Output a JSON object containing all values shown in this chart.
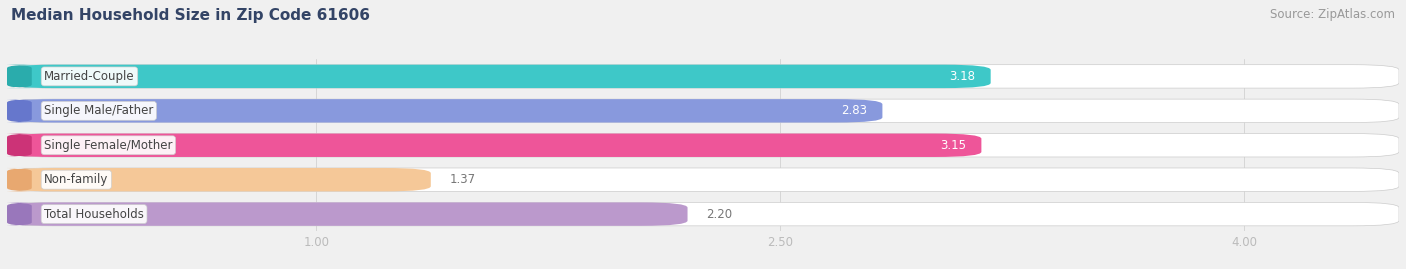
{
  "title": "Median Household Size in Zip Code 61606",
  "source": "Source: ZipAtlas.com",
  "categories": [
    "Married-Couple",
    "Single Male/Father",
    "Single Female/Mother",
    "Non-family",
    "Total Households"
  ],
  "values": [
    3.18,
    2.83,
    3.15,
    1.37,
    2.2
  ],
  "bar_colors": [
    "#3ec8c8",
    "#8899dd",
    "#ee5599",
    "#f5c898",
    "#bb99cc"
  ],
  "bar_left_colors": [
    "#2aacac",
    "#6677cc",
    "#cc3377",
    "#e8a870",
    "#9977bb"
  ],
  "value_label_colors": [
    "white",
    "white",
    "white",
    "#888888",
    "#888888"
  ],
  "xmin": 0.0,
  "xmax": 4.5,
  "xlim_display": [
    1.0,
    2.5,
    4.0
  ],
  "background_color": "#f0f0f0",
  "bar_bg_color": "#e0e0e8",
  "title_fontsize": 11,
  "title_color": "#334466",
  "source_fontsize": 8.5,
  "source_color": "#999999",
  "tick_color": "#bbbbbb",
  "bar_height": 0.68,
  "value_fontsize": 8.5,
  "label_fontsize": 8.5,
  "label_box_color": "white",
  "label_text_color": "#444444",
  "bar_gap": 0.32
}
